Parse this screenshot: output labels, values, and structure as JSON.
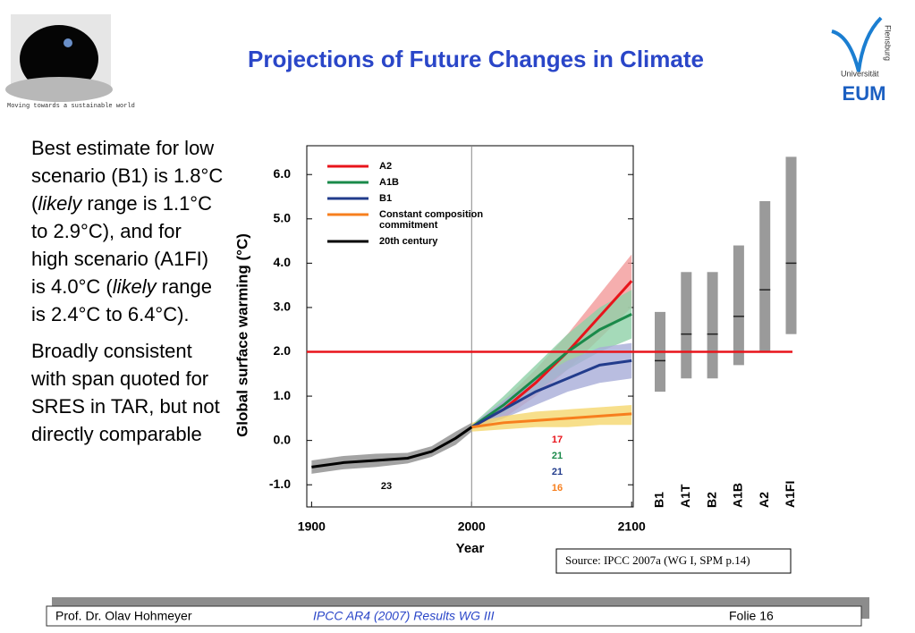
{
  "header": {
    "title": "Projections of Future Changes in Climate",
    "logo_caption": "Moving towards a sustainable world",
    "university": "Universität",
    "city": "Flensburg",
    "institute": "EUM"
  },
  "bullets": [
    [
      "Best estimate for low scenario (B1) is 1.8°C (",
      "likely",
      " range is 1.1°C to 2.9°C), and for high scenario (A1FI) is 4.0°C (",
      "likely",
      " range is 2.4°C to 6.4°C)."
    ],
    [
      "Broadly consistent with span quoted for SRES in TAR, but not directly comparable"
    ]
  ],
  "chart_data": {
    "type": "line",
    "xlabel": "Year",
    "ylabel": "Global surface warming (°C)",
    "xlim": [
      1897,
      2101
    ],
    "ylim": [
      -1.5,
      6.65
    ],
    "xticks": [
      1900,
      2000,
      2100
    ],
    "yticks": [
      {
        "value": -1,
        "label": "-1.0"
      },
      {
        "value": 0,
        "label": "0.0"
      },
      {
        "value": 1,
        "label": "1.0"
      },
      {
        "value": 2,
        "label": "2.0"
      },
      {
        "value": 3,
        "label": "3.0"
      },
      {
        "value": 4,
        "label": "4.0"
      },
      {
        "value": 5,
        "label": "5.0"
      },
      {
        "value": 6,
        "label": "6.0"
      }
    ],
    "vline": 2000,
    "hline": {
      "value": 2,
      "color": "#e8141b"
    },
    "series": [
      {
        "name": "A2",
        "color": "#e8141b",
        "band": "#f29a9a",
        "x": [
          2000,
          2020,
          2040,
          2060,
          2080,
          2100
        ],
        "values": [
          0.3,
          0.7,
          1.3,
          2.0,
          2.8,
          3.6
        ],
        "lower": [
          0.25,
          0.5,
          1.0,
          1.6,
          2.3,
          3.0
        ],
        "upper": [
          0.35,
          0.9,
          1.6,
          2.4,
          3.3,
          4.2
        ]
      },
      {
        "name": "A1B",
        "color": "#1a8a4a",
        "band": "#8fd1a7",
        "x": [
          2000,
          2020,
          2040,
          2060,
          2080,
          2100
        ],
        "values": [
          0.3,
          0.8,
          1.4,
          2.0,
          2.5,
          2.85
        ],
        "lower": [
          0.25,
          0.6,
          1.1,
          1.6,
          2.0,
          2.3
        ],
        "upper": [
          0.35,
          1.0,
          1.7,
          2.4,
          3.0,
          3.4
        ]
      },
      {
        "name": "B1",
        "color": "#223c8c",
        "band": "#a7acd8",
        "x": [
          2000,
          2020,
          2040,
          2060,
          2080,
          2100
        ],
        "values": [
          0.3,
          0.7,
          1.1,
          1.4,
          1.7,
          1.8
        ],
        "lower": [
          0.25,
          0.5,
          0.8,
          1.1,
          1.3,
          1.4
        ],
        "upper": [
          0.35,
          0.9,
          1.4,
          1.8,
          2.1,
          2.2
        ]
      },
      {
        "name": "Constant composition commitment",
        "color": "#f77f1e",
        "band": "#f5d76e",
        "x": [
          2000,
          2020,
          2040,
          2060,
          2080,
          2100
        ],
        "values": [
          0.3,
          0.4,
          0.45,
          0.5,
          0.55,
          0.6
        ],
        "lower": [
          0.2,
          0.25,
          0.3,
          0.3,
          0.35,
          0.35
        ],
        "upper": [
          0.4,
          0.55,
          0.65,
          0.7,
          0.75,
          0.8
        ]
      },
      {
        "name": "20th century",
        "color": "#000000",
        "band": "#8c8c8c",
        "x": [
          1900,
          1920,
          1940,
          1960,
          1975,
          1990,
          2000
        ],
        "values": [
          -0.6,
          -0.5,
          -0.45,
          -0.4,
          -0.25,
          0.05,
          0.3
        ],
        "lower": [
          -0.75,
          -0.65,
          -0.6,
          -0.52,
          -0.37,
          -0.1,
          0.2
        ],
        "upper": [
          -0.45,
          -0.35,
          -0.3,
          -0.28,
          -0.13,
          0.2,
          0.4
        ]
      }
    ],
    "annotations": [
      {
        "text": "17",
        "color": "#e8141b"
      },
      {
        "text": "21",
        "color": "#1a8a4a"
      },
      {
        "text": "21",
        "color": "#223c8c"
      },
      {
        "text": "16",
        "color": "#f77f1e"
      },
      {
        "text": "23",
        "color": "#000000"
      }
    ],
    "ranges": {
      "categories": [
        "B1",
        "A1T",
        "B2",
        "A1B",
        "A2",
        "A1FI"
      ],
      "color": "#9a9a9a",
      "low": [
        1.1,
        1.4,
        1.4,
        1.7,
        2.0,
        2.4
      ],
      "best": [
        1.8,
        2.4,
        2.4,
        2.8,
        3.4,
        4.0
      ],
      "high": [
        2.9,
        3.8,
        3.8,
        4.4,
        5.4,
        6.4
      ]
    }
  },
  "source": "Source: IPCC 2007a (WG I, SPM p.14)",
  "footer": {
    "author": "Prof. Dr. Olav Hohmeyer",
    "topic": "IPCC AR4 (2007) Results WG III",
    "page": "Folie 16"
  }
}
